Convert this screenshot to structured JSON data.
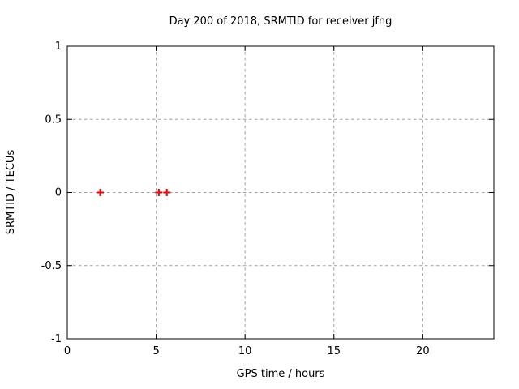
{
  "page": {
    "background_color": "#ffffff",
    "text_color": "#000000",
    "grid_color": "#a0a0a0"
  },
  "chart_data": {
    "type": "scatter",
    "title": "Day 200 of 2018, SRMTID for receiver jfng",
    "xlabel": "GPS time / hours",
    "ylabel": "SRMTID / TECUs",
    "xlim": [
      0,
      24
    ],
    "ylim": [
      -1,
      1
    ],
    "xticks": [
      0,
      5,
      10,
      15,
      20
    ],
    "yticks": [
      -1,
      -0.5,
      0,
      0.5,
      1
    ],
    "grid": true,
    "legend": "none",
    "series": [
      {
        "name": "SRMTID",
        "marker": "plus",
        "color": "#ff0000",
        "points": [
          {
            "x": 1.85,
            "y": 0
          },
          {
            "x": 5.15,
            "y": 0
          },
          {
            "x": 5.6,
            "y": 0
          }
        ]
      }
    ]
  }
}
